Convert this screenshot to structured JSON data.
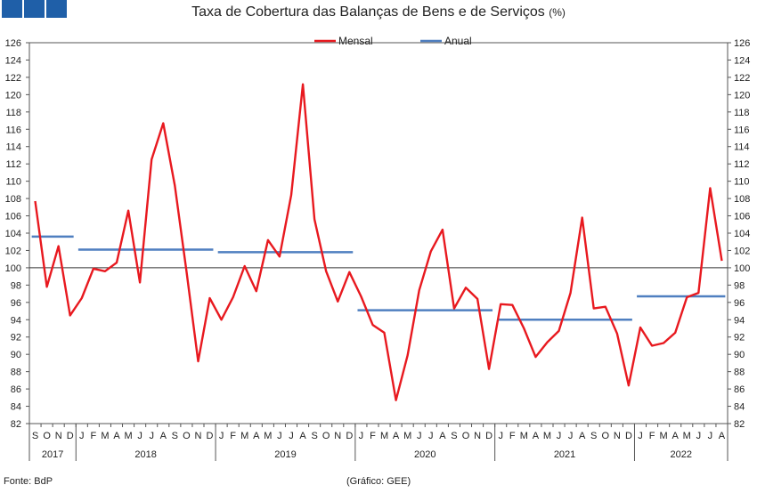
{
  "header": {
    "title": "Taxa de Cobertura das Balanças de Bens e de Serviços",
    "unit": "(%)",
    "logo_color": "#1f5fa8"
  },
  "footer": {
    "source": "Fonte: BdP",
    "credit": "(Gráfico: GEE)"
  },
  "chart_data": {
    "type": "line",
    "title": "Taxa de Cobertura das Balanças de Bens e de Serviços (%)",
    "ylim": [
      82,
      126
    ],
    "ytick_step": 2,
    "grid": false,
    "reference_line": 100,
    "legend_position": "top-center",
    "x_month_letters": [
      "S",
      "O",
      "N",
      "D",
      "J",
      "F",
      "M",
      "A",
      "M",
      "J",
      "J",
      "A",
      "S",
      "O",
      "N",
      "D",
      "J",
      "F",
      "M",
      "A",
      "M",
      "J",
      "J",
      "A",
      "S",
      "O",
      "N",
      "D",
      "J",
      "F",
      "M",
      "A",
      "M",
      "J",
      "J",
      "A",
      "S",
      "O",
      "N",
      "D",
      "J",
      "F",
      "M",
      "A",
      "M",
      "J",
      "J",
      "A",
      "S",
      "O",
      "N",
      "D",
      "J",
      "F",
      "M",
      "A",
      "M",
      "J",
      "J",
      "A"
    ],
    "years": [
      {
        "label": "2017",
        "start": 0,
        "count": 4
      },
      {
        "label": "2018",
        "start": 4,
        "count": 12
      },
      {
        "label": "2019",
        "start": 16,
        "count": 12
      },
      {
        "label": "2020",
        "start": 28,
        "count": 12
      },
      {
        "label": "2021",
        "start": 40,
        "count": 12
      },
      {
        "label": "2022",
        "start": 52,
        "count": 8
      }
    ],
    "series": [
      {
        "name": "Mensal",
        "color": "#e8191f",
        "values": [
          107.7,
          97.8,
          102.5,
          94.5,
          96.5,
          99.9,
          99.6,
          100.6,
          106.6,
          98.3,
          112.5,
          116.7,
          109.5,
          99.6,
          89.2,
          96.5,
          94.0,
          96.6,
          100.2,
          97.3,
          103.2,
          101.3,
          108.4,
          121.2,
          105.6,
          99.6,
          96.1,
          99.5,
          96.7,
          93.4,
          92.5,
          84.7,
          89.9,
          97.4,
          101.9,
          104.4,
          95.3,
          97.7,
          96.4,
          88.3,
          95.8,
          95.7,
          93.0,
          89.7,
          91.4,
          92.7,
          97.1,
          105.8,
          95.3,
          95.5,
          92.4,
          86.4,
          93.1,
          91.0,
          91.3,
          92.5,
          96.6,
          97.1,
          109.2,
          100.8
        ]
      },
      {
        "name": "Anual",
        "color": "#4f7fc0",
        "segments": [
          {
            "year": "2017",
            "value": 103.6
          },
          {
            "year": "2018",
            "value": 102.1
          },
          {
            "year": "2019",
            "value": 101.8
          },
          {
            "year": "2020",
            "value": 95.1
          },
          {
            "year": "2021",
            "value": 94.0
          },
          {
            "year": "2022",
            "value": 96.7
          }
        ]
      }
    ]
  }
}
